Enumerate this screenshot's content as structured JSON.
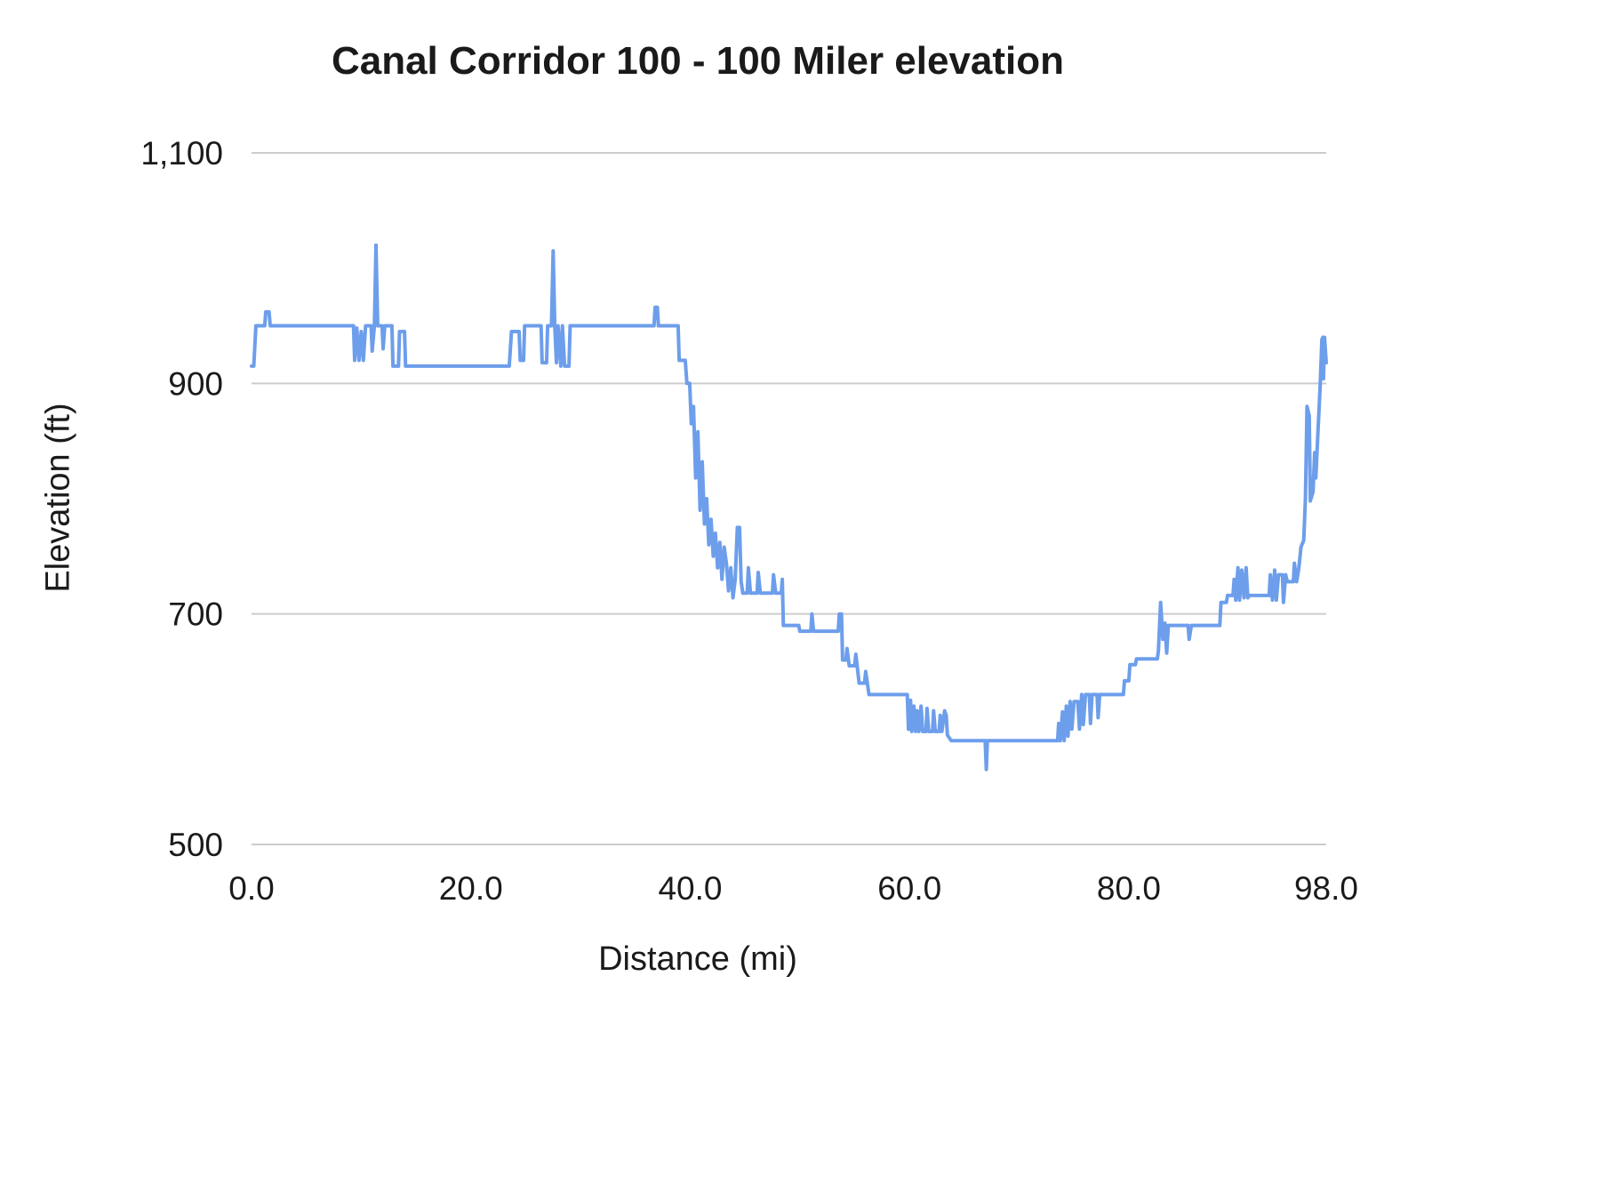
{
  "chart_data": {
    "type": "line",
    "title": "Canal Corridor 100 - 100 Miler elevation",
    "xlabel": "Distance (mi)",
    "ylabel": "Elevation (ft)",
    "xlim": [
      0,
      98
    ],
    "ylim": [
      500,
      1100
    ],
    "grid": "horizontal",
    "legend": "none",
    "line_color": "#6d9eeb",
    "grid_color": "#cccccc",
    "x_ticks": [
      {
        "value": 0,
        "label": "0.0"
      },
      {
        "value": 20,
        "label": "20.0"
      },
      {
        "value": 40,
        "label": "40.0"
      },
      {
        "value": 60,
        "label": "60.0"
      },
      {
        "value": 80,
        "label": "80.0"
      },
      {
        "value": 98,
        "label": "98.0"
      }
    ],
    "y_ticks": [
      {
        "value": 500,
        "label": "500"
      },
      {
        "value": 700,
        "label": "700"
      },
      {
        "value": 900,
        "label": "900"
      },
      {
        "value": 1100,
        "label": "1,100"
      }
    ],
    "series": [
      {
        "points": [
          [
            0,
            915
          ],
          [
            0.2,
            915
          ],
          [
            0.4,
            950
          ],
          [
            1.2,
            950
          ],
          [
            1.3,
            962
          ],
          [
            1.6,
            962
          ],
          [
            1.7,
            950
          ],
          [
            9.3,
            950
          ],
          [
            9.4,
            920
          ],
          [
            9.6,
            948
          ],
          [
            9.8,
            920
          ],
          [
            10.0,
            945
          ],
          [
            10.2,
            920
          ],
          [
            10.4,
            950
          ],
          [
            10.9,
            950
          ],
          [
            11.0,
            928
          ],
          [
            11.2,
            950
          ],
          [
            11.35,
            1020
          ],
          [
            11.5,
            950
          ],
          [
            11.9,
            950
          ],
          [
            12.0,
            930
          ],
          [
            12.15,
            950
          ],
          [
            12.8,
            950
          ],
          [
            12.9,
            915
          ],
          [
            13.4,
            915
          ],
          [
            13.5,
            945
          ],
          [
            13.95,
            945
          ],
          [
            14.05,
            915
          ],
          [
            23.5,
            915
          ],
          [
            23.7,
            945
          ],
          [
            24.4,
            945
          ],
          [
            24.5,
            920
          ],
          [
            24.8,
            920
          ],
          [
            24.9,
            950
          ],
          [
            26.4,
            950
          ],
          [
            26.5,
            918
          ],
          [
            26.9,
            918
          ],
          [
            27.0,
            950
          ],
          [
            27.35,
            950
          ],
          [
            27.5,
            1015
          ],
          [
            27.65,
            950
          ],
          [
            27.8,
            918
          ],
          [
            27.95,
            950
          ],
          [
            28.2,
            915
          ],
          [
            28.35,
            950
          ],
          [
            28.55,
            915
          ],
          [
            28.95,
            915
          ],
          [
            29.05,
            950
          ],
          [
            36.7,
            950
          ],
          [
            36.8,
            966
          ],
          [
            37.0,
            966
          ],
          [
            37.1,
            950
          ],
          [
            38.9,
            950
          ],
          [
            39.0,
            920
          ],
          [
            39.55,
            920
          ],
          [
            39.7,
            900
          ],
          [
            39.95,
            900
          ],
          [
            40.1,
            865
          ],
          [
            40.3,
            880
          ],
          [
            40.5,
            818
          ],
          [
            40.7,
            858
          ],
          [
            40.9,
            790
          ],
          [
            41.1,
            832
          ],
          [
            41.3,
            778
          ],
          [
            41.5,
            800
          ],
          [
            41.7,
            760
          ],
          [
            41.9,
            782
          ],
          [
            42.1,
            750
          ],
          [
            42.3,
            770
          ],
          [
            42.5,
            740
          ],
          [
            42.7,
            762
          ],
          [
            42.9,
            730
          ],
          [
            43.1,
            758
          ],
          [
            43.3,
            744
          ],
          [
            43.5,
            720
          ],
          [
            43.7,
            740
          ],
          [
            43.9,
            714
          ],
          [
            44.1,
            730
          ],
          [
            44.3,
            775
          ],
          [
            44.5,
            775
          ],
          [
            44.65,
            728
          ],
          [
            44.8,
            718
          ],
          [
            45.2,
            718
          ],
          [
            45.3,
            740
          ],
          [
            45.5,
            718
          ],
          [
            46.1,
            718
          ],
          [
            46.2,
            736
          ],
          [
            46.4,
            718
          ],
          [
            47.5,
            718
          ],
          [
            47.6,
            734
          ],
          [
            47.8,
            718
          ],
          [
            48.3,
            718
          ],
          [
            48.4,
            730
          ],
          [
            48.5,
            690
          ],
          [
            49.9,
            690
          ],
          [
            50.0,
            685
          ],
          [
            51.0,
            685
          ],
          [
            51.1,
            700
          ],
          [
            51.25,
            685
          ],
          [
            53.5,
            685
          ],
          [
            53.6,
            700
          ],
          [
            53.8,
            700
          ],
          [
            53.9,
            660
          ],
          [
            54.2,
            660
          ],
          [
            54.3,
            670
          ],
          [
            54.5,
            655
          ],
          [
            55.0,
            655
          ],
          [
            55.1,
            665
          ],
          [
            55.4,
            640
          ],
          [
            55.9,
            640
          ],
          [
            56.0,
            650
          ],
          [
            56.3,
            630
          ],
          [
            59.8,
            630
          ],
          [
            59.9,
            600
          ],
          [
            60.1,
            625
          ],
          [
            60.2,
            598
          ],
          [
            60.4,
            620
          ],
          [
            60.55,
            598
          ],
          [
            60.7,
            616
          ],
          [
            60.85,
            598
          ],
          [
            61.05,
            620
          ],
          [
            61.2,
            598
          ],
          [
            61.5,
            598
          ],
          [
            61.6,
            618
          ],
          [
            61.75,
            598
          ],
          [
            62.1,
            598
          ],
          [
            62.2,
            616
          ],
          [
            62.35,
            598
          ],
          [
            62.7,
            598
          ],
          [
            62.8,
            612
          ],
          [
            62.95,
            598
          ],
          [
            63.2,
            616
          ],
          [
            63.35,
            612
          ],
          [
            63.45,
            595
          ],
          [
            63.8,
            590
          ],
          [
            66.9,
            590
          ],
          [
            67.0,
            565
          ],
          [
            67.1,
            590
          ],
          [
            73.5,
            590
          ],
          [
            73.6,
            605
          ],
          [
            73.75,
            590
          ],
          [
            73.95,
            615
          ],
          [
            74.1,
            590
          ],
          [
            74.3,
            620
          ],
          [
            74.45,
            594
          ],
          [
            74.65,
            624
          ],
          [
            74.8,
            600
          ],
          [
            75.0,
            624
          ],
          [
            75.35,
            624
          ],
          [
            75.5,
            600
          ],
          [
            75.7,
            630
          ],
          [
            75.85,
            604
          ],
          [
            76.05,
            630
          ],
          [
            76.4,
            630
          ],
          [
            76.5,
            605
          ],
          [
            76.65,
            630
          ],
          [
            77.1,
            630
          ],
          [
            77.2,
            610
          ],
          [
            77.35,
            630
          ],
          [
            79.5,
            630
          ],
          [
            79.6,
            642
          ],
          [
            80.0,
            642
          ],
          [
            80.1,
            656
          ],
          [
            80.6,
            656
          ],
          [
            80.7,
            661
          ],
          [
            82.6,
            661
          ],
          [
            82.7,
            668
          ],
          [
            82.9,
            710
          ],
          [
            83.1,
            678
          ],
          [
            83.3,
            692
          ],
          [
            83.45,
            666
          ],
          [
            83.6,
            690
          ],
          [
            85.4,
            690
          ],
          [
            85.5,
            678
          ],
          [
            85.7,
            690
          ],
          [
            88.3,
            690
          ],
          [
            88.4,
            710
          ],
          [
            88.9,
            710
          ],
          [
            89.0,
            716
          ],
          [
            89.5,
            716
          ],
          [
            89.6,
            730
          ],
          [
            89.75,
            712
          ],
          [
            89.95,
            740
          ],
          [
            90.1,
            712
          ],
          [
            90.3,
            738
          ],
          [
            90.5,
            714
          ],
          [
            90.7,
            740
          ],
          [
            90.85,
            714
          ],
          [
            91.0,
            716
          ],
          [
            92.8,
            716
          ],
          [
            92.9,
            734
          ],
          [
            93.1,
            712
          ],
          [
            93.3,
            738
          ],
          [
            93.45,
            712
          ],
          [
            93.65,
            734
          ],
          [
            94.0,
            734
          ],
          [
            94.1,
            710
          ],
          [
            94.3,
            734
          ],
          [
            94.45,
            728
          ],
          [
            95.0,
            728
          ],
          [
            95.1,
            744
          ],
          [
            95.3,
            728
          ],
          [
            95.5,
            740
          ],
          [
            95.7,
            758
          ],
          [
            95.95,
            764
          ],
          [
            96.1,
            800
          ],
          [
            96.25,
            880
          ],
          [
            96.45,
            872
          ],
          [
            96.55,
            798
          ],
          [
            96.8,
            806
          ],
          [
            96.95,
            840
          ],
          [
            97.05,
            818
          ],
          [
            97.25,
            858
          ],
          [
            97.45,
            898
          ],
          [
            97.6,
            938
          ],
          [
            97.7,
            940
          ],
          [
            97.75,
            904
          ],
          [
            97.85,
            940
          ],
          [
            98.0,
            918
          ]
        ]
      }
    ]
  }
}
